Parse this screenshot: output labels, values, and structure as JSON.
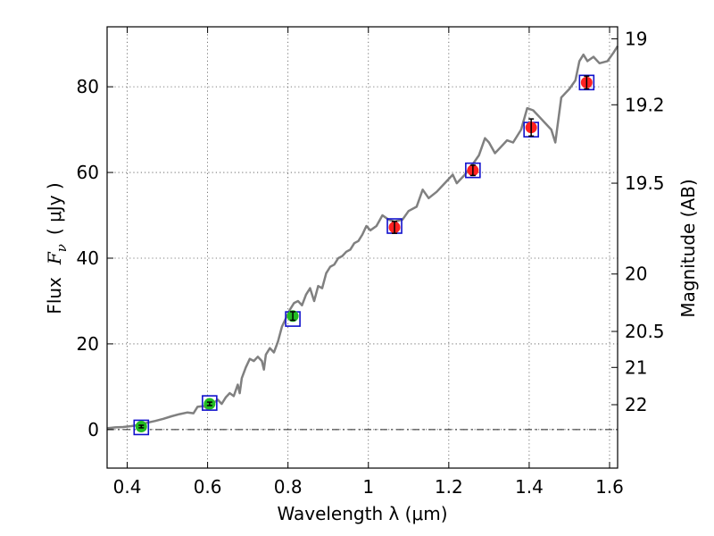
{
  "chart_data": {
    "type": "scatter",
    "xlabel": "Wavelength  λ (μm)",
    "ylabel_text": "Flux",
    "ylabel_symbol": "F",
    "ylabel_subscript": "ν",
    "ylabel_unit": "( μJy )",
    "ylabel_right": "Magnitude (AB)",
    "xlim": [
      0.35,
      1.62
    ],
    "ylim": [
      -9,
      94
    ],
    "xticks": [
      {
        "value": 0.4,
        "label": "0.4"
      },
      {
        "value": 0.6,
        "label": "0.6"
      },
      {
        "value": 0.8,
        "label": "0.8"
      },
      {
        "value": 1.0,
        "label": "1"
      },
      {
        "value": 1.2,
        "label": "1.2"
      },
      {
        "value": 1.4,
        "label": "1.4"
      },
      {
        "value": 1.6,
        "label": "1.6"
      }
    ],
    "yticks": [
      {
        "value": 0,
        "label": "0"
      },
      {
        "value": 20,
        "label": "20"
      },
      {
        "value": 40,
        "label": "40"
      },
      {
        "value": 60,
        "label": "60"
      },
      {
        "value": 80,
        "label": "80"
      }
    ],
    "right_ticks": [
      {
        "flux": 91.2,
        "label": "19"
      },
      {
        "flux": 75.8,
        "label": "19.2"
      },
      {
        "flux": 57.5,
        "label": "19.5"
      },
      {
        "flux": 36.3,
        "label": "20"
      },
      {
        "flux": 22.9,
        "label": "20.5"
      },
      {
        "flux": 14.5,
        "label": "21"
      },
      {
        "flux": 5.8,
        "label": "22"
      }
    ],
    "grid": true,
    "zero_line": true,
    "model_spectrum": {
      "color": "#808080",
      "points": [
        [
          0.35,
          0.3
        ],
        [
          0.37,
          0.5
        ],
        [
          0.39,
          0.6
        ],
        [
          0.41,
          0.8
        ],
        [
          0.43,
          1.1
        ],
        [
          0.45,
          1.6
        ],
        [
          0.47,
          2.0
        ],
        [
          0.49,
          2.5
        ],
        [
          0.51,
          3.1
        ],
        [
          0.53,
          3.6
        ],
        [
          0.55,
          4.0
        ],
        [
          0.565,
          3.8
        ],
        [
          0.575,
          5.3
        ],
        [
          0.59,
          5.5
        ],
        [
          0.6,
          4.8
        ],
        [
          0.615,
          6.2
        ],
        [
          0.625,
          7.0
        ],
        [
          0.635,
          6.0
        ],
        [
          0.645,
          7.5
        ],
        [
          0.655,
          8.5
        ],
        [
          0.665,
          7.8
        ],
        [
          0.675,
          10.5
        ],
        [
          0.68,
          8.5
        ],
        [
          0.685,
          12.0
        ],
        [
          0.695,
          14.5
        ],
        [
          0.705,
          16.5
        ],
        [
          0.715,
          16.0
        ],
        [
          0.725,
          17.0
        ],
        [
          0.735,
          16.0
        ],
        [
          0.74,
          14.0
        ],
        [
          0.745,
          17.5
        ],
        [
          0.755,
          19.0
        ],
        [
          0.765,
          18.0
        ],
        [
          0.775,
          20.5
        ],
        [
          0.785,
          24.0
        ],
        [
          0.795,
          26.0
        ],
        [
          0.805,
          28.0
        ],
        [
          0.815,
          29.5
        ],
        [
          0.825,
          30.0
        ],
        [
          0.835,
          29.0
        ],
        [
          0.845,
          31.5
        ],
        [
          0.855,
          33.0
        ],
        [
          0.865,
          30.0
        ],
        [
          0.875,
          33.5
        ],
        [
          0.885,
          33.0
        ],
        [
          0.895,
          36.5
        ],
        [
          0.905,
          38.0
        ],
        [
          0.915,
          38.5
        ],
        [
          0.925,
          40.0
        ],
        [
          0.935,
          40.5
        ],
        [
          0.945,
          41.5
        ],
        [
          0.955,
          42.0
        ],
        [
          0.965,
          43.5
        ],
        [
          0.975,
          44.0
        ],
        [
          0.985,
          45.5
        ],
        [
          0.995,
          47.5
        ],
        [
          1.005,
          46.5
        ],
        [
          1.02,
          47.5
        ],
        [
          1.035,
          50.0
        ],
        [
          1.05,
          49.0
        ],
        [
          1.065,
          48.5
        ],
        [
          1.085,
          49.0
        ],
        [
          1.1,
          51.0
        ],
        [
          1.12,
          52.0
        ],
        [
          1.135,
          56.0
        ],
        [
          1.15,
          54.0
        ],
        [
          1.17,
          55.5
        ],
        [
          1.19,
          57.5
        ],
        [
          1.21,
          59.5
        ],
        [
          1.22,
          57.5
        ],
        [
          1.24,
          59.5
        ],
        [
          1.26,
          62.0
        ],
        [
          1.275,
          64.0
        ],
        [
          1.29,
          68.0
        ],
        [
          1.3,
          67.0
        ],
        [
          1.315,
          64.5
        ],
        [
          1.33,
          66.0
        ],
        [
          1.345,
          67.5
        ],
        [
          1.36,
          67.0
        ],
        [
          1.38,
          70.0
        ],
        [
          1.395,
          75.0
        ],
        [
          1.41,
          74.5
        ],
        [
          1.425,
          73.0
        ],
        [
          1.44,
          71.5
        ],
        [
          1.455,
          70.0
        ],
        [
          1.465,
          67.0
        ],
        [
          1.48,
          77.5
        ],
        [
          1.5,
          79.5
        ],
        [
          1.515,
          81.5
        ],
        [
          1.525,
          86.0
        ],
        [
          1.535,
          87.5
        ],
        [
          1.545,
          86.0
        ],
        [
          1.56,
          87.0
        ],
        [
          1.575,
          85.5
        ],
        [
          1.595,
          86.0
        ],
        [
          1.61,
          88.0
        ],
        [
          1.62,
          89.5
        ]
      ]
    },
    "series": [
      {
        "color": "#22bb22",
        "points": [
          {
            "x": 0.435,
            "y": 0.7,
            "err": 0.3
          },
          {
            "x": 0.605,
            "y": 6.0,
            "err": 0.4
          },
          {
            "x": 0.812,
            "y": 26.5,
            "err": 1.0
          }
        ]
      },
      {
        "color": "#ff2020",
        "points": [
          {
            "x": 1.065,
            "y": 47.2,
            "err": 1.4
          },
          {
            "x": 1.26,
            "y": 60.5,
            "err": 1.2
          },
          {
            "x": 1.405,
            "y": 70.5,
            "err": 2.0
          },
          {
            "x": 1.543,
            "y": 81.0,
            "err": 1.5
          }
        ]
      }
    ],
    "model_boxes": {
      "color": "#1010cc",
      "points": [
        [
          0.435,
          0.5
        ],
        [
          0.605,
          6.2
        ],
        [
          0.812,
          25.8
        ],
        [
          1.065,
          47.5
        ],
        [
          1.26,
          60.5
        ],
        [
          1.405,
          70.0
        ],
        [
          1.543,
          81.0
        ]
      ]
    }
  }
}
